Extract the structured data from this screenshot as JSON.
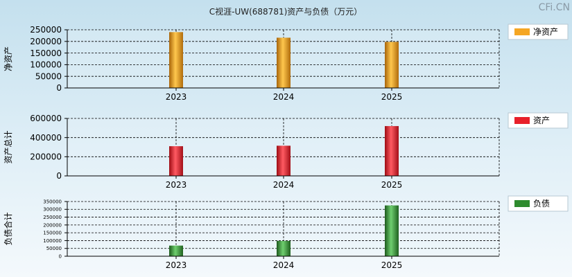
{
  "title": "C视涯-UW(688781)资产与负债（万元）",
  "watermark": "CFi.CN",
  "chart_data": [
    {
      "type": "bar",
      "ylabel": "净资产",
      "legend": "净资产",
      "legend_placement": "right",
      "color": "#f5a623",
      "categories": [
        "2023",
        "2024",
        "2025"
      ],
      "values": [
        240000,
        216000,
        198000
      ],
      "ylim": [
        0,
        250000
      ],
      "yticks": [
        0,
        50000,
        100000,
        150000,
        200000,
        250000
      ],
      "grid": true
    },
    {
      "type": "bar",
      "ylabel": "资产总计",
      "legend": "资产",
      "legend_placement": "right",
      "color": "#e8202a",
      "categories": [
        "2023",
        "2024",
        "2025"
      ],
      "values": [
        310000,
        315000,
        520000
      ],
      "ylim": [
        0,
        600000
      ],
      "yticks": [
        0,
        200000,
        400000,
        600000
      ],
      "grid": true
    },
    {
      "type": "bar",
      "ylabel": "负债合计",
      "legend": "负债",
      "legend_placement": "right",
      "color": "#2e8b2e",
      "categories": [
        "2023",
        "2024",
        "2025"
      ],
      "values": [
        68000,
        98000,
        325000
      ],
      "ylim": [
        0,
        350000
      ],
      "yticks": [
        0,
        50000,
        100000,
        150000,
        200000,
        250000,
        300000,
        350000
      ],
      "grid": true
    }
  ]
}
